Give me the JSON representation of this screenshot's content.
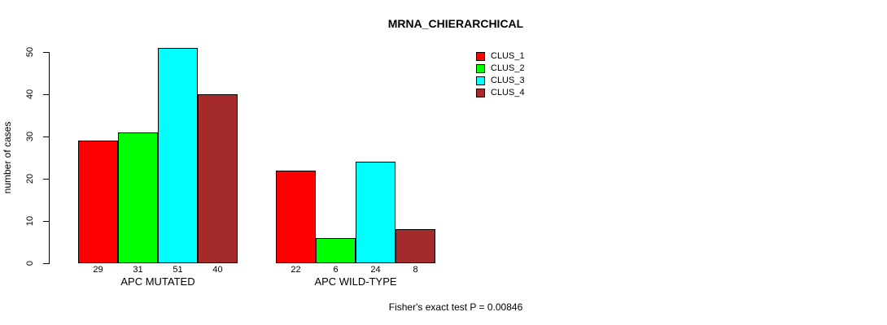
{
  "chart_data": {
    "type": "bar",
    "title": "MRNA_CHIERARCHICAL",
    "xlabel": "",
    "ylabel": "number of cases",
    "ylim": [
      0,
      50
    ],
    "yticks": [
      0,
      10,
      20,
      30,
      40,
      50
    ],
    "categories": [
      "APC MUTATED",
      "APC WILD-TYPE"
    ],
    "series": [
      {
        "name": "CLUS_1",
        "color": "#ff0000",
        "values": [
          29,
          22
        ]
      },
      {
        "name": "CLUS_2",
        "color": "#00ff00",
        "values": [
          31,
          6
        ]
      },
      {
        "name": "CLUS_3",
        "color": "#00ffff",
        "values": [
          51,
          24
        ]
      },
      {
        "name": "CLUS_4",
        "color": "#a52a2a",
        "values": [
          40,
          8
        ]
      }
    ],
    "bar_value_labels_shown": true,
    "legend_position": "top-right",
    "grid": false,
    "annotation": "Fisher's exact test P = 0.00846"
  },
  "colors": {
    "axis": "#000000",
    "text": "#000000",
    "background": "#ffffff"
  }
}
